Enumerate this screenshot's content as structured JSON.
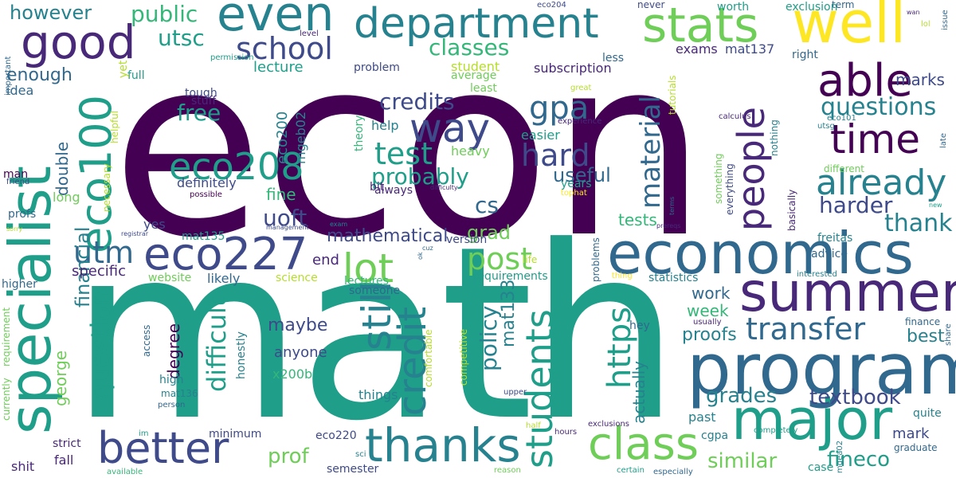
{
  "palette": {
    "c1": "#440154",
    "c2": "#482878",
    "c3": "#3e4a89",
    "c4": "#31688e",
    "c5": "#26828e",
    "c6": "#1f9e89",
    "c7": "#35b779",
    "c8": "#6ece58",
    "c9": "#b5de2b",
    "c10": "#fde725"
  },
  "words": [
    {
      "text": "econ",
      "color": "c1"
    },
    {
      "text": "math",
      "color": "c6"
    },
    {
      "text": "specialist",
      "color": "c6"
    },
    {
      "text": "eco100",
      "color": "c6"
    },
    {
      "text": "program",
      "color": "c4"
    },
    {
      "text": "economics",
      "color": "c4"
    },
    {
      "text": "summer",
      "color": "c2"
    },
    {
      "text": "major",
      "color": "c6"
    },
    {
      "text": "department",
      "color": "c5"
    },
    {
      "text": "well",
      "color": "c10"
    },
    {
      "text": "even",
      "color": "c5"
    },
    {
      "text": "good",
      "color": "c2"
    },
    {
      "text": "stats",
      "color": "c8"
    },
    {
      "text": "able",
      "color": "c1"
    },
    {
      "text": "time",
      "color": "c1"
    },
    {
      "text": "eco227",
      "color": "c3"
    },
    {
      "text": "better",
      "color": "c3"
    },
    {
      "text": "thanks",
      "color": "c5"
    },
    {
      "text": "class",
      "color": "c8"
    },
    {
      "text": "students",
      "color": "c6"
    },
    {
      "text": "still",
      "color": "c5"
    },
    {
      "text": "credit",
      "color": "c5"
    },
    {
      "text": "way",
      "color": "c3"
    },
    {
      "text": "lot",
      "color": "c8"
    },
    {
      "text": "eco208",
      "color": "c6"
    },
    {
      "text": "people",
      "color": "c2"
    },
    {
      "text": "already",
      "color": "c5"
    },
    {
      "text": "school",
      "color": "c3"
    },
    {
      "text": "https",
      "color": "c6"
    },
    {
      "text": "transfer",
      "color": "c4"
    },
    {
      "text": "test",
      "color": "c6"
    },
    {
      "text": "hard",
      "color": "c3"
    },
    {
      "text": "post",
      "color": "c8"
    },
    {
      "text": "utm",
      "color": "c4"
    },
    {
      "text": "gpa",
      "color": "c4"
    },
    {
      "text": "material",
      "color": "c4"
    },
    {
      "text": "question",
      "color": "c6"
    },
    {
      "text": "difficult",
      "color": "c6"
    },
    {
      "text": "questions",
      "color": "c5"
    },
    {
      "text": "thank",
      "color": "c5"
    },
    {
      "text": "harder",
      "color": "c3"
    },
    {
      "text": "policy",
      "color": "c5"
    },
    {
      "text": "uoft",
      "color": "c3"
    },
    {
      "text": "classes",
      "color": "c7"
    },
    {
      "text": "credits",
      "color": "c3"
    },
    {
      "text": "probably",
      "color": "c6"
    },
    {
      "text": "textbook",
      "color": "c3"
    },
    {
      "text": "grades",
      "color": "c5"
    },
    {
      "text": "fineco",
      "color": "c6"
    },
    {
      "text": "similar",
      "color": "c8"
    },
    {
      "text": "prof",
      "color": "c8"
    },
    {
      "text": "financial",
      "color": "c5"
    },
    {
      "text": "public",
      "color": "c7"
    },
    {
      "text": "utsc",
      "color": "c6"
    },
    {
      "text": "free",
      "color": "c6"
    },
    {
      "text": "however",
      "color": "c5"
    },
    {
      "text": "mathematical",
      "color": "c3"
    },
    {
      "text": "cs",
      "color": "c4"
    },
    {
      "text": "grad",
      "color": "c8"
    },
    {
      "text": "useful",
      "color": "c4"
    },
    {
      "text": "mat133",
      "color": "c5"
    },
    {
      "text": "actually",
      "color": "c5"
    },
    {
      "text": "proofs",
      "color": "c5"
    },
    {
      "text": "best",
      "color": "c5"
    },
    {
      "text": "marks",
      "color": "c3"
    },
    {
      "text": "week",
      "color": "c7"
    },
    {
      "text": "work",
      "color": "c4"
    },
    {
      "text": "degree",
      "color": "c1"
    },
    {
      "text": "maybe",
      "color": "c3"
    },
    {
      "text": "anyone",
      "color": "c3"
    },
    {
      "text": "fine",
      "color": "c7"
    },
    {
      "text": "tests",
      "color": "c7"
    },
    {
      "text": "enough",
      "color": "c4"
    },
    {
      "text": "double",
      "color": "c4"
    },
    {
      "text": "george",
      "color": "c8"
    },
    {
      "text": "eco200",
      "color": "c5"
    },
    {
      "text": "mgeb02",
      "color": "c5"
    },
    {
      "text": "lecture",
      "color": "c6"
    },
    {
      "text": "subscription",
      "color": "c2"
    },
    {
      "text": "exams",
      "color": "c2"
    },
    {
      "text": "mat137",
      "color": "c3"
    },
    {
      "text": "specific",
      "color": "c2"
    },
    {
      "text": "end",
      "color": "c2"
    },
    {
      "text": "likely",
      "color": "c4"
    },
    {
      "text": "mark",
      "color": "c3"
    },
    {
      "text": "graduate",
      "color": "c4"
    },
    {
      "text": "cgpa",
      "color": "c5"
    },
    {
      "text": "past",
      "color": "c5"
    },
    {
      "text": "hey",
      "color": "c4"
    },
    {
      "text": "advice",
      "color": "c4"
    },
    {
      "text": "freitas",
      "color": "c5"
    },
    {
      "text": "exclusion",
      "color": "c6"
    },
    {
      "text": "term",
      "color": "c4"
    },
    {
      "text": "worth",
      "color": "c6"
    },
    {
      "text": "never",
      "color": "c3"
    },
    {
      "text": "eco204",
      "color": "c3"
    },
    {
      "text": "tough",
      "color": "c3"
    },
    {
      "text": "stuff",
      "color": "c2"
    },
    {
      "text": "full",
      "color": "c6"
    },
    {
      "text": "problem",
      "color": "c3"
    },
    {
      "text": "student",
      "color": "c9"
    },
    {
      "text": "average",
      "color": "c8"
    },
    {
      "text": "least",
      "color": "c8"
    },
    {
      "text": "less",
      "color": "c4"
    },
    {
      "text": "yet",
      "color": "c9"
    },
    {
      "text": "right",
      "color": "c4"
    },
    {
      "text": "idea",
      "color": "c4"
    },
    {
      "text": "help",
      "color": "c5"
    },
    {
      "text": "theory",
      "color": "c7"
    },
    {
      "text": "easier",
      "color": "c6"
    },
    {
      "text": "heavy",
      "color": "c8"
    },
    {
      "text": "bit",
      "color": "c2"
    },
    {
      "text": "always",
      "color": "c2"
    },
    {
      "text": "years",
      "color": "c6"
    },
    {
      "text": "tophat",
      "color": "c10"
    },
    {
      "text": "version",
      "color": "c3"
    },
    {
      "text": "definitely",
      "color": "c3"
    },
    {
      "text": "possible",
      "color": "c1"
    },
    {
      "text": "yes",
      "color": "c3"
    },
    {
      "text": "long",
      "color": "c8"
    },
    {
      "text": "profs",
      "color": "c4"
    },
    {
      "text": "man",
      "color": "c1"
    },
    {
      "text": "friend",
      "color": "c3"
    },
    {
      "text": "higher",
      "color": "c4"
    },
    {
      "text": "mat135",
      "color": "c6"
    },
    {
      "text": "website",
      "color": "c8"
    },
    {
      "text": "science",
      "color": "c9"
    },
    {
      "text": "lectures",
      "color": "c7"
    },
    {
      "text": "someone",
      "color": "c4"
    },
    {
      "text": "requirements",
      "color": "c6"
    },
    {
      "text": "statistics",
      "color": "c5"
    },
    {
      "text": "problems",
      "color": "c4"
    },
    {
      "text": "thing",
      "color": "c10"
    },
    {
      "text": "interested",
      "color": "c5"
    },
    {
      "text": "usually",
      "color": "c2"
    },
    {
      "text": "finance",
      "color": "c4"
    },
    {
      "text": "share",
      "color": "c4"
    },
    {
      "text": "honestly",
      "color": "c5"
    },
    {
      "text": "access",
      "color": "c4"
    },
    {
      "text": "high",
      "color": "c5"
    },
    {
      "text": "mat136",
      "color": "c5"
    },
    {
      "text": "person",
      "color": "c4"
    },
    {
      "text": "x200b",
      "color": "c7"
    },
    {
      "text": "comfortable",
      "color": "c9"
    },
    {
      "text": "competitive",
      "color": "c9"
    },
    {
      "text": "upper",
      "color": "c3"
    },
    {
      "text": "things",
      "color": "c5"
    },
    {
      "text": "strict",
      "color": "c2"
    },
    {
      "text": "fall",
      "color": "c2"
    },
    {
      "text": "shit",
      "color": "c2"
    },
    {
      "text": "minimum",
      "color": "c3"
    },
    {
      "text": "eco220",
      "color": "c3"
    },
    {
      "text": "semester",
      "color": "c3"
    },
    {
      "text": "available",
      "color": "c7"
    },
    {
      "text": "im",
      "color": "c6"
    },
    {
      "text": "sci",
      "color": "c5"
    },
    {
      "text": "half",
      "color": "c9"
    },
    {
      "text": "hours",
      "color": "c2"
    },
    {
      "text": "exclusions",
      "color": "c2"
    },
    {
      "text": "reason",
      "color": "c8"
    },
    {
      "text": "certain",
      "color": "c6"
    },
    {
      "text": "especially",
      "color": "c4"
    },
    {
      "text": "completely",
      "color": "c6"
    },
    {
      "text": "case",
      "color": "c6"
    },
    {
      "text": "mgea02",
      "color": "c5"
    },
    {
      "text": "quite",
      "color": "c5"
    },
    {
      "text": "currently",
      "color": "c8"
    },
    {
      "text": "requirement",
      "color": "c8"
    },
    {
      "text": "helpful",
      "color": "c9"
    },
    {
      "text": "necessary",
      "color": "c9"
    },
    {
      "text": "important",
      "color": "c4"
    },
    {
      "text": "permission",
      "color": "c6"
    },
    {
      "text": "level",
      "color": "c2"
    },
    {
      "text": "great",
      "color": "c9"
    },
    {
      "text": "experience",
      "color": "c2"
    },
    {
      "text": "calculus",
      "color": "c2"
    },
    {
      "text": "tutorials",
      "color": "c9"
    },
    {
      "text": "eco101",
      "color": "c5"
    },
    {
      "text": "utsg",
      "color": "c5"
    },
    {
      "text": "nothing",
      "color": "c5"
    },
    {
      "text": "everything",
      "color": "c3"
    },
    {
      "text": "basically",
      "color": "c2"
    },
    {
      "text": "something",
      "color": "c8"
    },
    {
      "text": "terms",
      "color": "c4"
    },
    {
      "text": "different",
      "color": "c8"
    },
    {
      "text": "late",
      "color": "c4"
    },
    {
      "text": "new",
      "color": "c6"
    },
    {
      "text": "wan",
      "color": "c2"
    },
    {
      "text": "lol",
      "color": "c9"
    },
    {
      "text": "issue",
      "color": "c4"
    },
    {
      "text": "life",
      "color": "c9"
    },
    {
      "text": "exam",
      "color": "c5"
    },
    {
      "text": "cuz",
      "color": "c4"
    },
    {
      "text": "ok",
      "color": "c4"
    },
    {
      "text": "management",
      "color": "c3"
    },
    {
      "text": "registrar",
      "color": "c3"
    },
    {
      "text": "sorry",
      "color": "c9"
    },
    {
      "text": "prereqs",
      "color": "c2"
    },
    {
      "text": "difficulty",
      "color": "c2"
    }
  ]
}
